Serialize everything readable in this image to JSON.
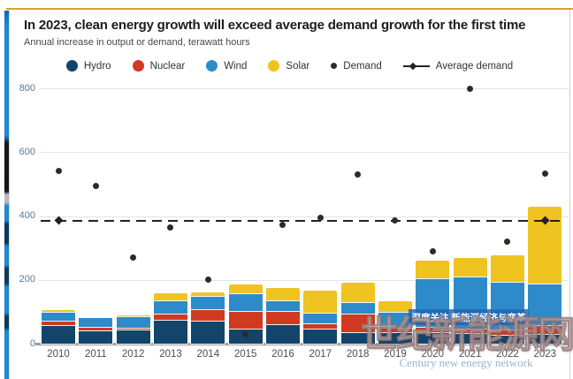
{
  "header": {
    "title": "In 2023, clean energy growth will exceed average demand growth for the first time",
    "subtitle": "Annual increase in output or demand, terawatt hours"
  },
  "legend": {
    "items": [
      {
        "label": "Hydro",
        "marker": "circle",
        "color": "#124569"
      },
      {
        "label": "Nuclear",
        "marker": "circle",
        "color": "#d03a20"
      },
      {
        "label": "Wind",
        "marker": "circle",
        "color": "#2e8bc9"
      },
      {
        "label": "Solar",
        "marker": "circle",
        "color": "#efc320"
      },
      {
        "label": "Demand",
        "marker": "dot",
        "color": "#2b2b2b"
      },
      {
        "label": "Average demand",
        "marker": "line-diamond",
        "color": "#222222"
      }
    ]
  },
  "chart_data": {
    "type": "bar",
    "stacked": true,
    "title": "In 2023, clean energy growth will exceed average demand growth for the first time",
    "subtitle": "Annual increase in output or demand, terawatt hours",
    "unit": "terawatt hours",
    "categories": [
      "2010",
      "2011",
      "2012",
      "2013",
      "2014",
      "2015",
      "2016",
      "2017",
      "2018",
      "2019",
      "2020",
      "2021",
      "2022",
      "2023"
    ],
    "series": [
      {
        "name": "Hydro",
        "color": "#124569",
        "values": [
          57,
          41,
          45,
          75,
          71,
          48,
          60,
          46,
          35,
          37,
          36,
          34,
          29,
          31
        ]
      },
      {
        "name": "Nuclear",
        "color": "#d03a20",
        "values": [
          14,
          11,
          6,
          20,
          37,
          55,
          43,
          18,
          60,
          14,
          16,
          14,
          14,
          27
        ]
      },
      {
        "name": "Wind",
        "color": "#2e8bc9",
        "values": [
          30,
          30,
          35,
          42,
          41,
          55,
          33,
          32,
          36,
          48,
          152,
          161,
          152,
          129
        ]
      },
      {
        "name": "Solar",
        "color": "#efc320",
        "values": [
          3,
          2,
          2,
          20,
          12,
          28,
          39,
          69,
          60,
          35,
          57,
          60,
          83,
          243
        ]
      }
    ],
    "scatter_series": {
      "name": "Demand",
      "color": "#2b2b2b",
      "values": [
        540,
        495,
        270,
        363,
        202,
        30,
        372,
        395,
        530,
        385,
        290,
        800,
        321,
        533
      ]
    },
    "reference_line": {
      "name": "Average demand",
      "value": 385,
      "style": "dashed",
      "color": "#222222",
      "end_markers": "diamond"
    },
    "yticks": [
      0,
      200,
      400,
      600,
      800
    ],
    "ylim": [
      0,
      870
    ],
    "grid": "horizontal",
    "legend_position": "top"
  },
  "watermarks": {
    "banner": "深度关注 新能源经济与变革",
    "large": "世纪新能源网",
    "english": "Century new energy network"
  },
  "accents": {
    "top_line_color": "#d7a12c",
    "left_strip_color": "#1e88d2"
  }
}
